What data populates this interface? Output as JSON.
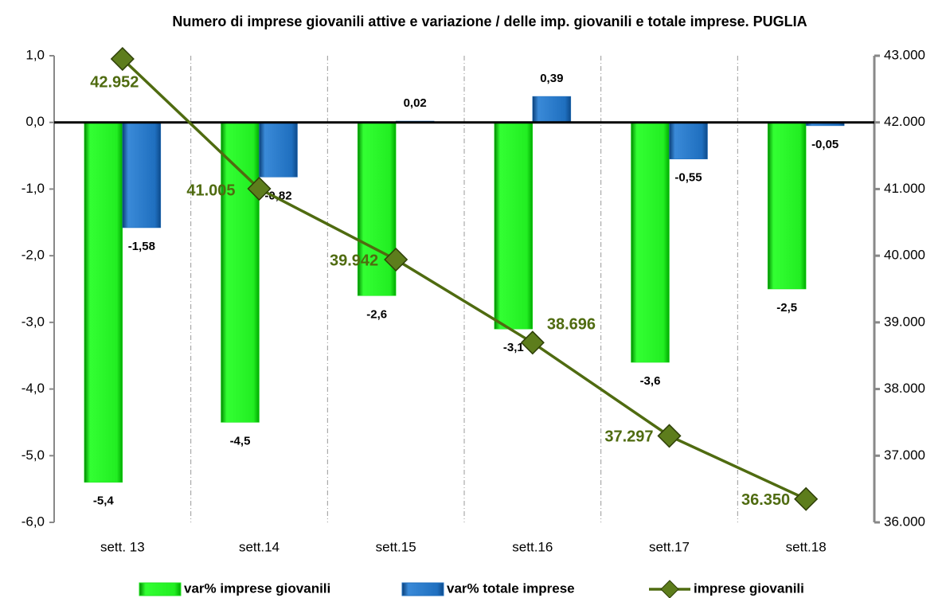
{
  "chart_data": {
    "type": "bar",
    "title": "Numero di imprese giovanili attive e variazione / delle imp. giovanili e totale imprese.  PUGLIA",
    "categories": [
      "sett. 13",
      "sett.14",
      "sett.15",
      "sett.16",
      "sett.17",
      "sett.18"
    ],
    "series": [
      {
        "name": "var% imprese giovanili",
        "type": "bar",
        "color": "#22e622",
        "values": [
          -5.4,
          -4.5,
          -2.6,
          -3.1,
          -3.6,
          -2.5
        ],
        "value_labels": [
          "-5,4",
          "-4,5",
          "-2,6",
          "-3,1",
          "-3,6",
          "-2,5"
        ]
      },
      {
        "name": "var% totale imprese",
        "type": "bar",
        "color": "#1f6fbf",
        "values": [
          -1.58,
          -0.82,
          0.02,
          0.39,
          -0.55,
          -0.05
        ],
        "value_labels": [
          "-1,58",
          "-0,82",
          "0,02",
          "0,39",
          "-0,55",
          "-0,05"
        ]
      },
      {
        "name": "imprese giovanili",
        "type": "line",
        "axis": "y2",
        "color": "#4f6b10",
        "values": [
          42952,
          41005,
          39942,
          38696,
          37297,
          36350
        ],
        "value_labels": [
          "42.952",
          "41.005",
          "39.942",
          "38.696",
          "37.297",
          "36.350"
        ]
      }
    ],
    "ylim": [
      -6,
      1
    ],
    "yticks": [
      {
        "value": 1,
        "label": "1,0"
      },
      {
        "value": 0,
        "label": "0,0"
      },
      {
        "value": -1,
        "label": "-1,0"
      },
      {
        "value": -2,
        "label": "-2,0"
      },
      {
        "value": -3,
        "label": "-3,0"
      },
      {
        "value": -4,
        "label": "-4,0"
      },
      {
        "value": -5,
        "label": "-5,0"
      },
      {
        "value": -6,
        "label": "-6,0"
      }
    ],
    "y2lim": [
      36000,
      43000
    ],
    "y2ticks": [
      {
        "value": 43000,
        "label": "43.000"
      },
      {
        "value": 42000,
        "label": "42.000"
      },
      {
        "value": 41000,
        "label": "41.000"
      },
      {
        "value": 40000,
        "label": "40.000"
      },
      {
        "value": 39000,
        "label": "39.000"
      },
      {
        "value": 38000,
        "label": "38.000"
      },
      {
        "value": 37000,
        "label": "37.000"
      },
      {
        "value": 36000,
        "label": "36.000"
      }
    ],
    "legend": "bottom"
  }
}
